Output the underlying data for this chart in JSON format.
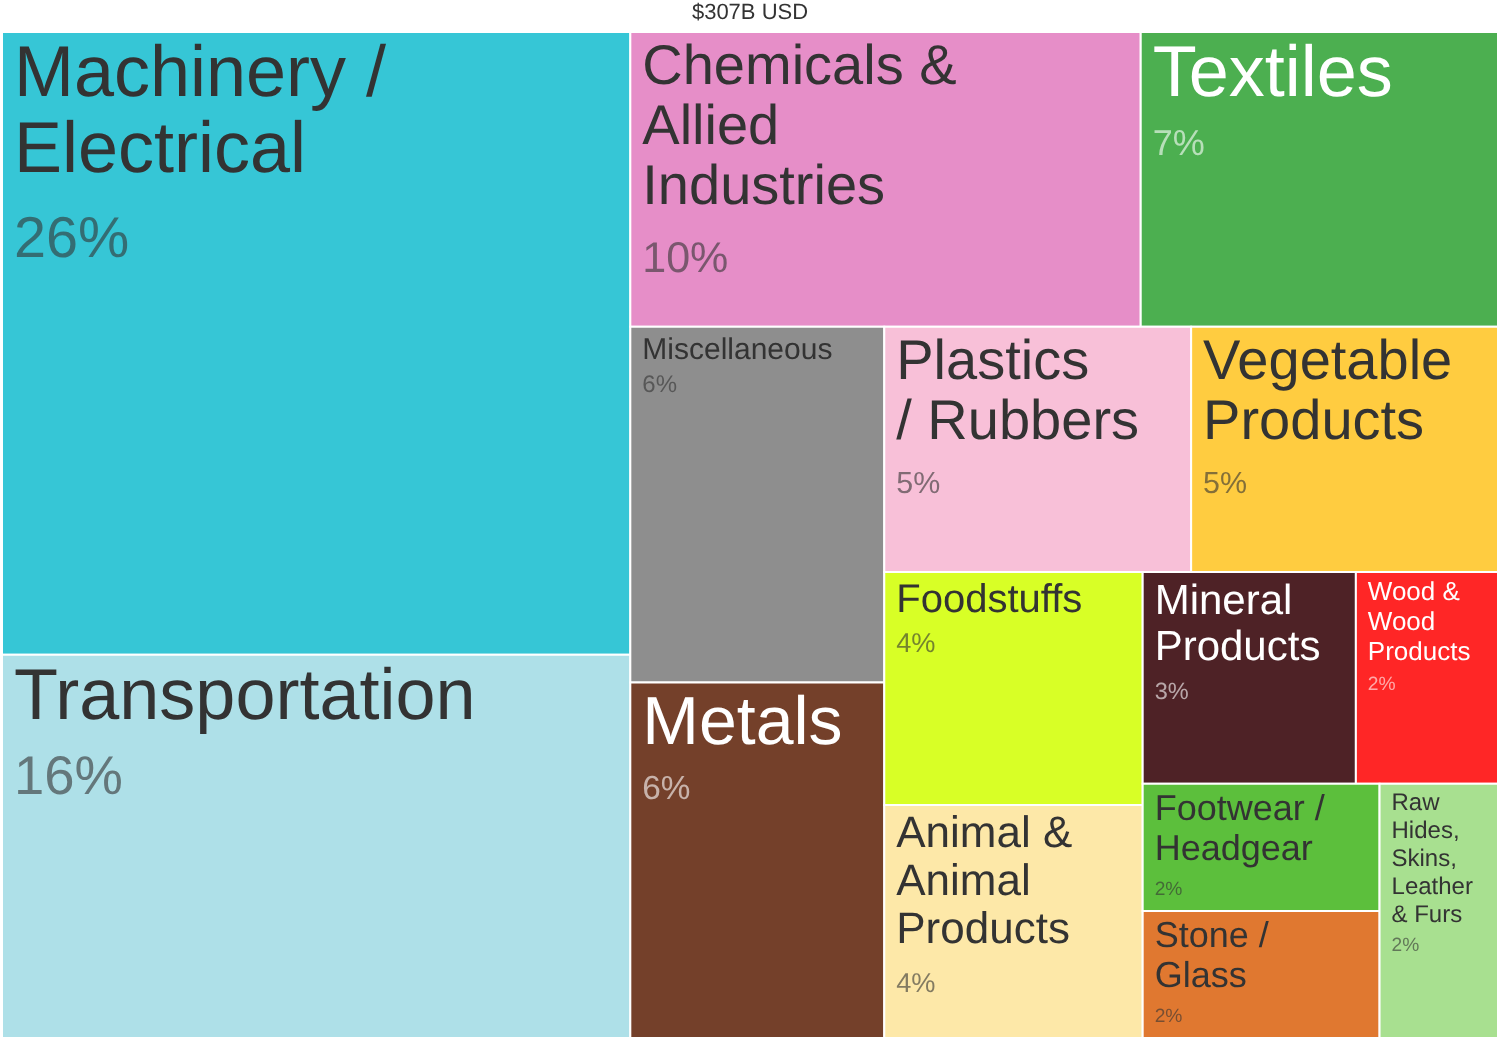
{
  "chart_data": {
    "type": "other",
    "title": "$307B USD",
    "categories": [
      "Machinery / Electrical",
      "Transportation",
      "Chemicals & Allied Industries",
      "Textiles",
      "Miscellaneous",
      "Metals",
      "Plastics / Rubbers",
      "Vegetable Products",
      "Foodstuffs",
      "Animal & Animal Products",
      "Mineral Products",
      "Wood & Wood Products",
      "Footwear / Headgear",
      "Stone / Glass",
      "Raw Hides, Skins, Leather & Furs"
    ],
    "values": [
      26,
      16,
      10,
      7,
      6,
      6,
      5,
      5,
      4,
      4,
      3,
      2,
      2,
      2,
      2
    ],
    "value_labels": [
      "26%",
      "16%",
      "10%",
      "7%",
      "6%",
      "6%",
      "5%",
      "5%",
      "4%",
      "4%",
      "3%",
      "2%",
      "2%",
      "2%",
      "2%"
    ],
    "colors": [
      "#36c6d6",
      "#aee0e8",
      "#e68ec8",
      "#4caf50",
      "#8e8e8e",
      "#74402a",
      "#f8c0d8",
      "#ffcc40",
      "#d8ff26",
      "#fde8a8",
      "#4e2226",
      "#ff2626",
      "#5cbf3c",
      "#e07830",
      "#a8e090"
    ]
  }
}
